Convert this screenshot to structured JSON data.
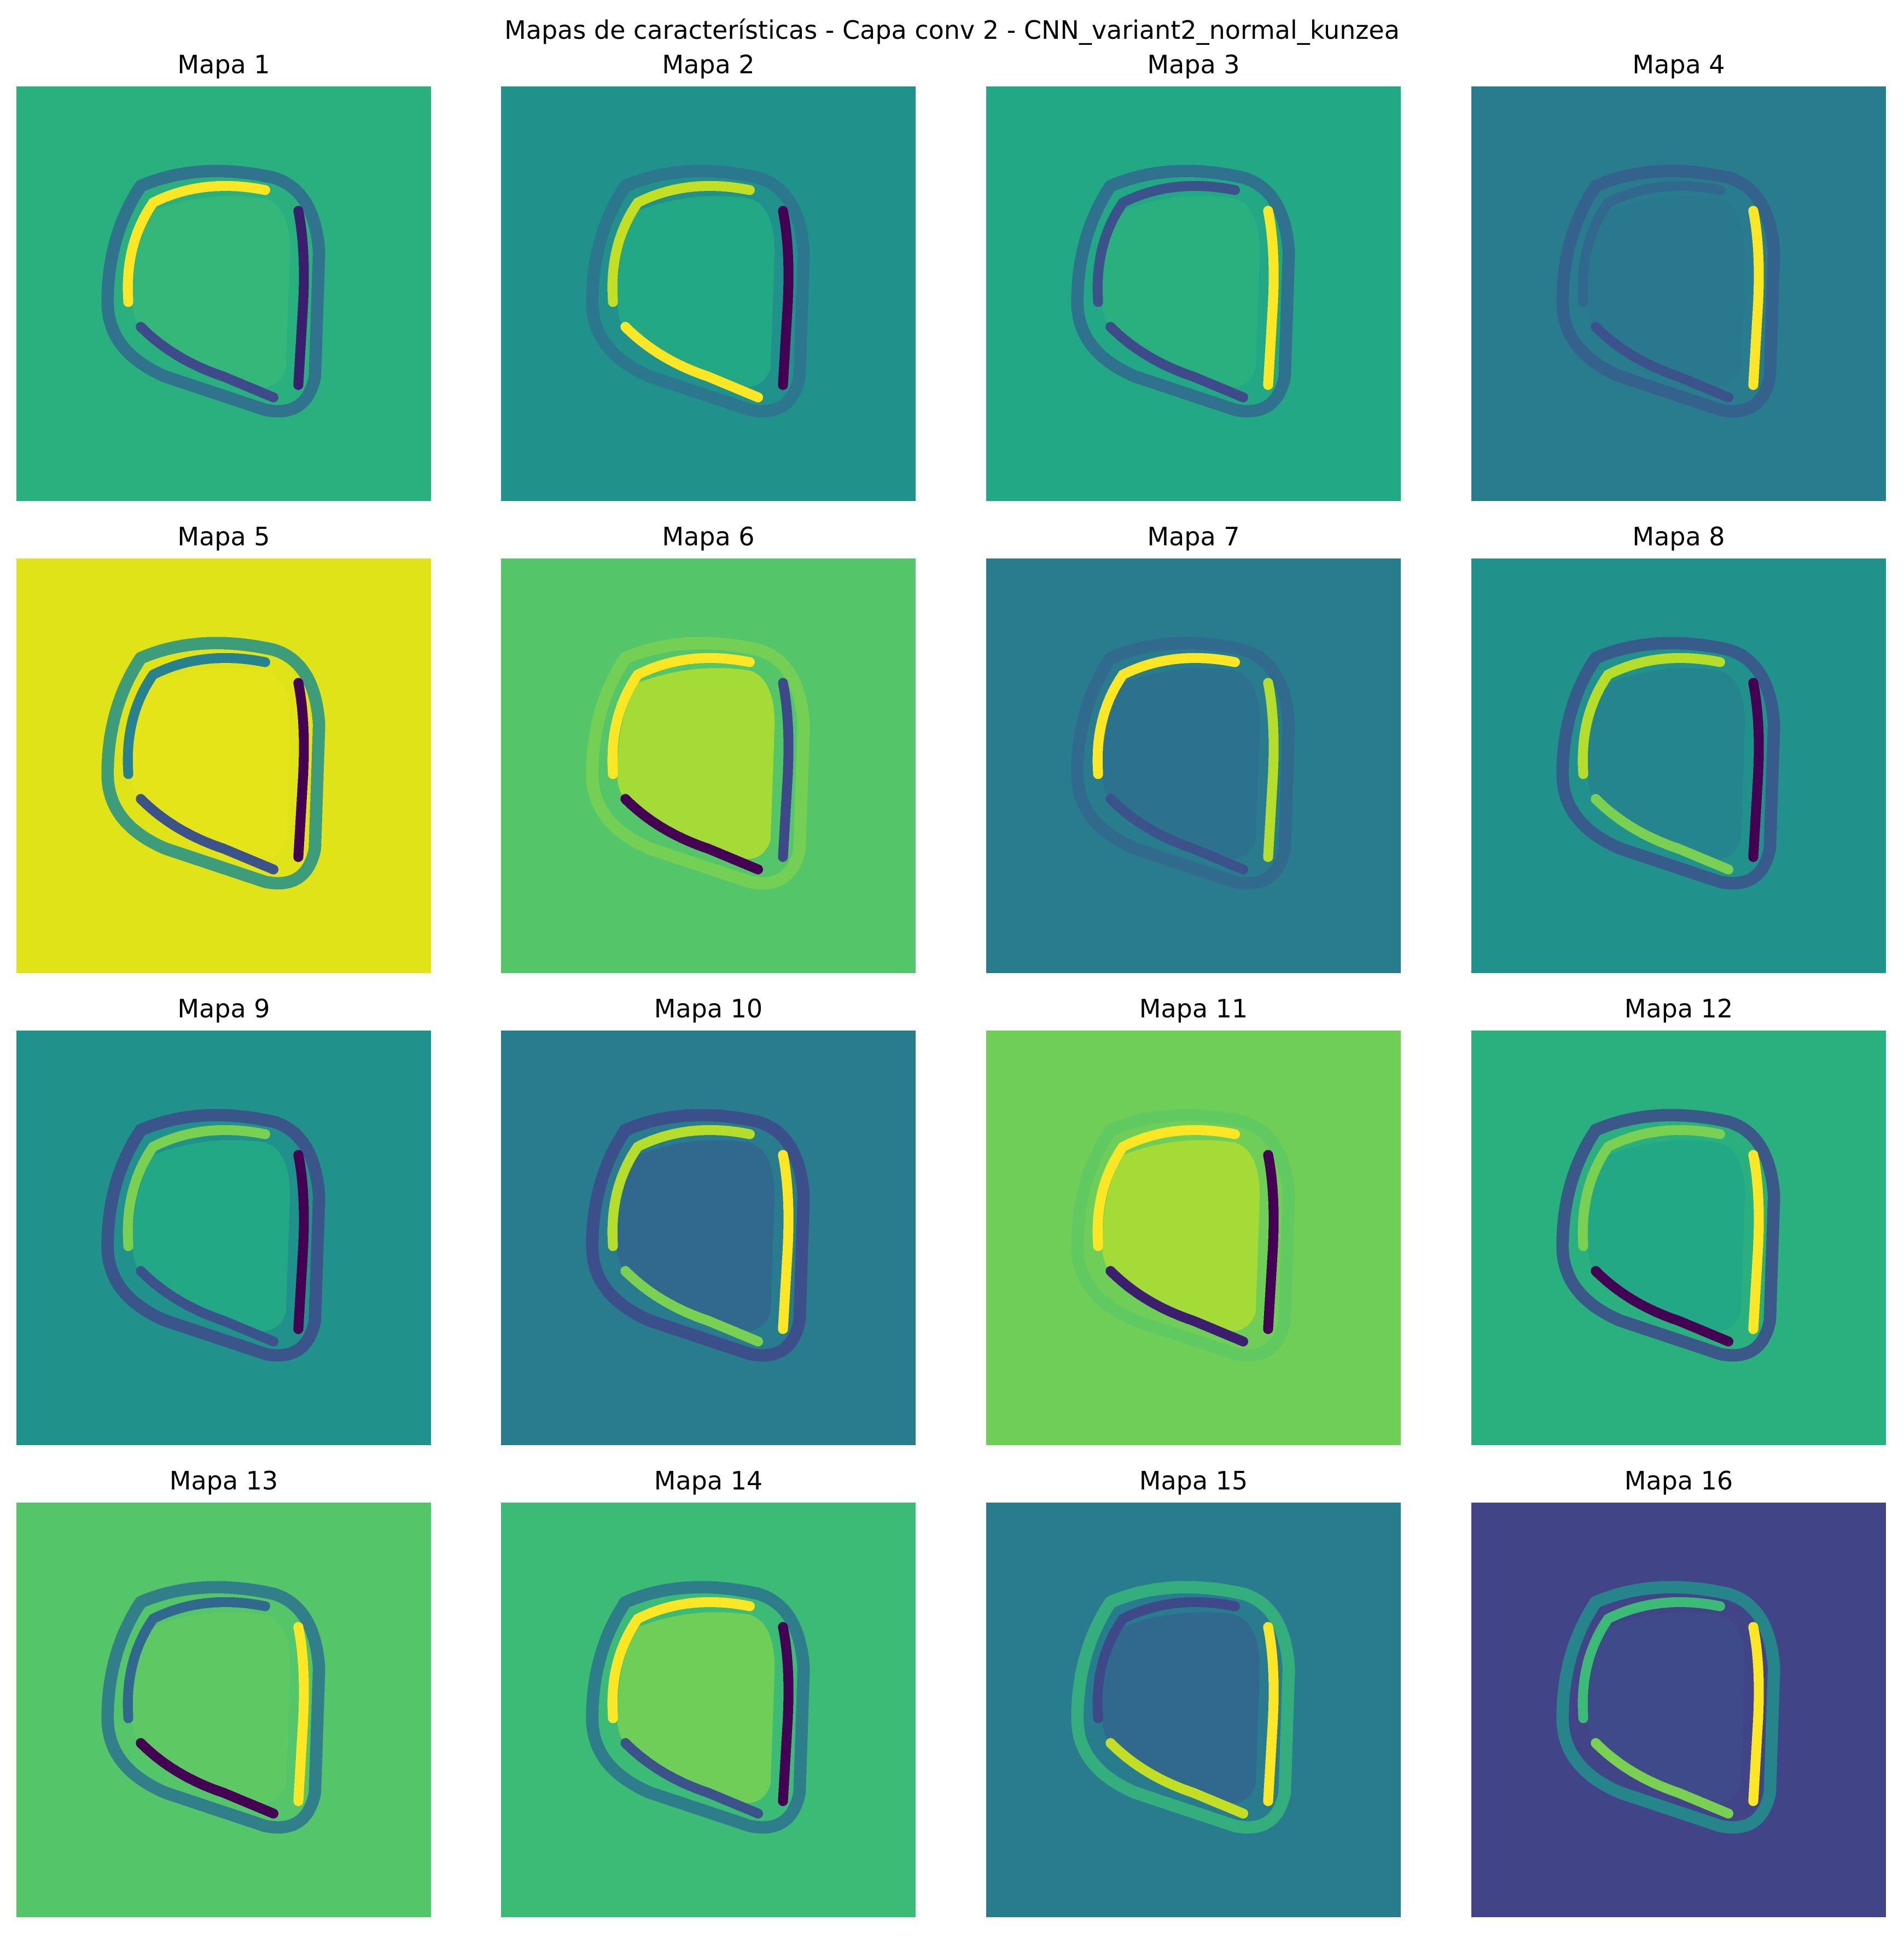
{
  "figure": {
    "title": "Mapas de características - Capa conv 2 - CNN_variant2_normal_kunzea"
  },
  "maps": [
    {
      "title": "Mapa 1",
      "background": "#2ab07f",
      "edges": {
        "outer": "#31688e",
        "left": "#fde725",
        "right": "#3b1e6e",
        "bottom": "#3e4a89"
      },
      "inner": "#35b779"
    },
    {
      "title": "Mapa 2",
      "background": "#21918c",
      "edges": {
        "outer": "#2c728e",
        "left": "#c2df23",
        "right": "#440154",
        "bottom": "#fde725"
      },
      "inner": "#22a884"
    },
    {
      "title": "Mapa 3",
      "background": "#22a884",
      "edges": {
        "outer": "#31688e",
        "left": "#3b528b",
        "right": "#fde725",
        "bottom": "#3e4a89"
      },
      "inner": "#2ab07f"
    },
    {
      "title": "Mapa 4",
      "background": "#287c8e",
      "edges": {
        "outer": "#355f8d",
        "left": "#31688e",
        "right": "#fde725",
        "bottom": "#3b528b"
      },
      "inner": "#2a788e"
    },
    {
      "title": "Mapa 5",
      "background": "#dfe318",
      "edges": {
        "outer": "#21918c",
        "left": "#26828e",
        "right": "#440154",
        "bottom": "#3b528b"
      },
      "inner": "#e5e419"
    },
    {
      "title": "Mapa 6",
      "background": "#54c568",
      "edges": {
        "outer": "#7ad151",
        "left": "#fde725",
        "right": "#3e4989",
        "bottom": "#440154"
      },
      "inner": "#a5db36"
    },
    {
      "title": "Mapa 7",
      "background": "#287c8e",
      "edges": {
        "outer": "#31688e",
        "left": "#fde725",
        "right": "#b5de2b",
        "bottom": "#3b528b"
      },
      "inner": "#2c718e"
    },
    {
      "title": "Mapa 8",
      "background": "#21918c",
      "edges": {
        "outer": "#3b528b",
        "left": "#b5de2b",
        "right": "#440154",
        "bottom": "#7ad151"
      },
      "inner": "#25858e"
    },
    {
      "title": "Mapa 9",
      "background": "#21918c",
      "edges": {
        "outer": "#3e4a89",
        "left": "#7ad151",
        "right": "#440154",
        "bottom": "#3b528b"
      },
      "inner": "#22a884"
    },
    {
      "title": "Mapa 10",
      "background": "#287c8e",
      "edges": {
        "outer": "#3e4989",
        "left": "#b5de2b",
        "right": "#fde725",
        "bottom": "#7ad151"
      },
      "inner": "#31688e"
    },
    {
      "title": "Mapa 11",
      "background": "#6ece58",
      "edges": {
        "outer": "#5ec962",
        "left": "#fde725",
        "right": "#440154",
        "bottom": "#3b1e6e"
      },
      "inner": "#a5db36"
    },
    {
      "title": "Mapa 12",
      "background": "#2ab07f",
      "edges": {
        "outer": "#3e4a89",
        "left": "#7ad151",
        "right": "#fde725",
        "bottom": "#440154"
      },
      "inner": "#22a884"
    },
    {
      "title": "Mapa 13",
      "background": "#54c568",
      "edges": {
        "outer": "#2c728e",
        "left": "#31688e",
        "right": "#fde725",
        "bottom": "#440154"
      },
      "inner": "#5ec962"
    },
    {
      "title": "Mapa 14",
      "background": "#3bbb75",
      "edges": {
        "outer": "#2c728e",
        "left": "#fde725",
        "right": "#440154",
        "bottom": "#3b528b"
      },
      "inner": "#6ece58"
    },
    {
      "title": "Mapa 15",
      "background": "#287c8e",
      "edges": {
        "outer": "#35b779",
        "left": "#3e4989",
        "right": "#fde725",
        "bottom": "#c2df23"
      },
      "inner": "#31688e"
    },
    {
      "title": "Mapa 16",
      "background": "#414487",
      "edges": {
        "outer": "#21918c",
        "left": "#3bbb75",
        "right": "#fde725",
        "bottom": "#7ad151"
      },
      "inner": "#3e4a89"
    }
  ]
}
